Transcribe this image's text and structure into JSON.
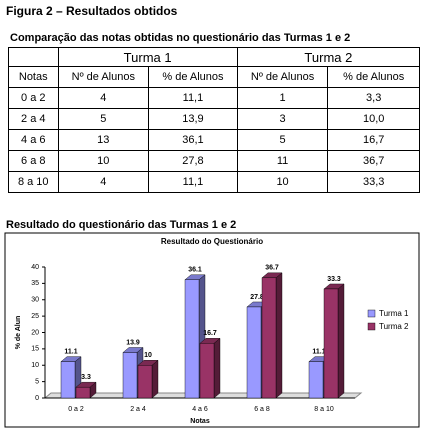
{
  "title": "Figura 2 – Resultados obtidos",
  "table": {
    "caption": "Comparação das notas obtidas no questionário das Turmas 1 e 2",
    "group_headers": [
      "Turma 1",
      "Turma 2"
    ],
    "columns": [
      "Notas",
      "Nº de Alunos",
      "% de Alunos",
      "Nº de Alunos",
      "% de Alunos"
    ],
    "rows": [
      [
        "0 a 2",
        "4",
        "11,1",
        "1",
        "3,3"
      ],
      [
        "2 a 4",
        "5",
        "13,9",
        "3",
        "10,0"
      ],
      [
        "4 a 6",
        "13",
        "36,1",
        "5",
        "16,7"
      ],
      [
        "6 a 8",
        "10",
        "27,8",
        "11",
        "36,7"
      ],
      [
        "8 a 10",
        "4",
        "11,1",
        "10",
        "33,3"
      ]
    ]
  },
  "chart_caption": "Resultado do questionário das Turmas 1 e 2",
  "chart_data": {
    "type": "bar",
    "title": "Resultado do Questionário",
    "categories": [
      "0 a 2",
      "2 a 4",
      "4 a 6",
      "6 a 8",
      "8 a 10"
    ],
    "series": [
      {
        "name": "Turma 1",
        "color": "#9999ff",
        "values": [
          11.1,
          13.9,
          36.1,
          27.8,
          11.1
        ]
      },
      {
        "name": "Turma 2",
        "color": "#993366",
        "values": [
          3.3,
          10,
          16.7,
          36.7,
          33.3
        ]
      }
    ],
    "ylim": [
      0,
      40
    ],
    "yticks": [
      0,
      5,
      10,
      15,
      20,
      25,
      30,
      35,
      40
    ],
    "xlabel": "Notas",
    "ylabel": "% de Alun",
    "legend": "right"
  }
}
